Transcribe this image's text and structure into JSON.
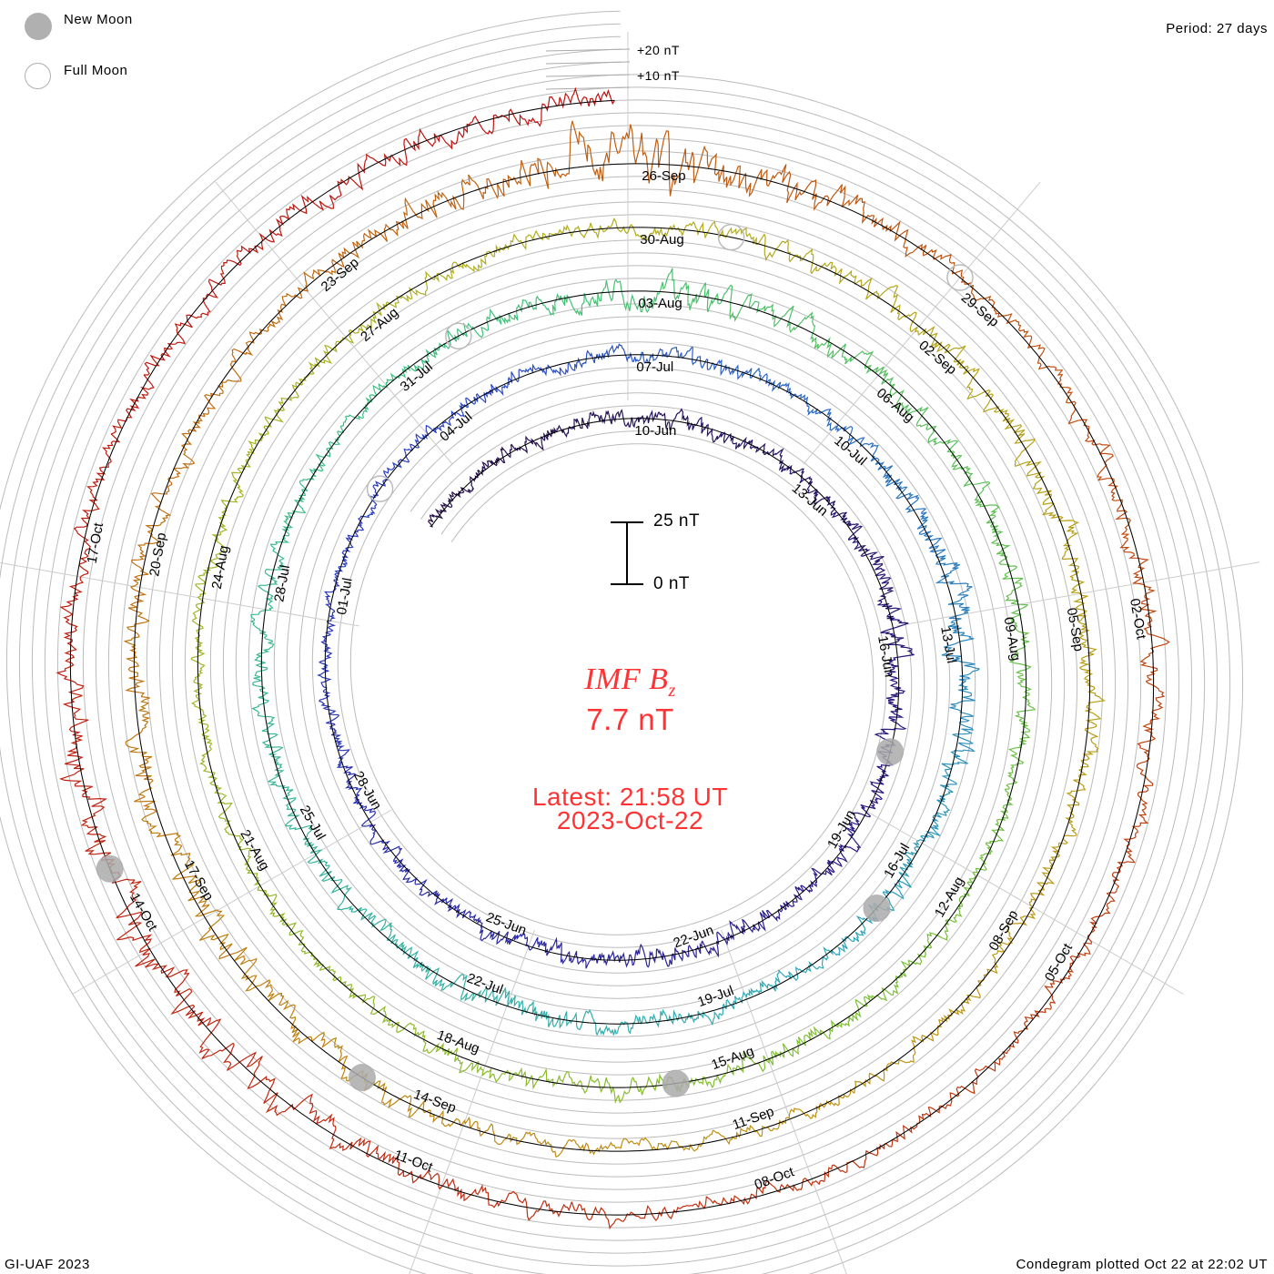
{
  "legend": {
    "new_moon": "New Moon",
    "full_moon": "Full Moon"
  },
  "period": "Period: 27 days",
  "scale_labels": {
    "plus20": "+20 nT",
    "plus10": "+10 nT"
  },
  "scale_bar": {
    "top": "25 nT",
    "bottom": "0 nT"
  },
  "title": {
    "main": "IMF B",
    "sub": "z",
    "value": "7.7 nT"
  },
  "latest": {
    "time": "Latest: 21:58 UT",
    "date": "2023-Oct-22"
  },
  "footer": {
    "left": "GI-UAF 2023",
    "right": "Condegram plotted Oct 22 at 22:02 UT"
  },
  "chart_data": {
    "type": "line",
    "subtype": "condegram-spiral",
    "title": "IMF Bz",
    "period_days": 27,
    "unit": "nT",
    "start_label_date": "10-Jun",
    "data_start_day": -4,
    "data_end_day": 134.9,
    "date_labels": [
      "10-Jun",
      "13-Jun",
      "16-Jun",
      "19-Jun",
      "22-Jun",
      "25-Jun",
      "28-Jun",
      "01-Jul",
      "04-Jul",
      "07-Jul",
      "10-Jul",
      "13-Jul",
      "16-Jul",
      "19-Jul",
      "22-Jul",
      "25-Jul",
      "28-Jul",
      "31-Jul",
      "03-Aug",
      "06-Aug",
      "09-Aug",
      "12-Aug",
      "15-Aug",
      "18-Aug",
      "21-Aug",
      "24-Aug",
      "27-Aug",
      "30-Aug",
      "02-Sep",
      "05-Sep",
      "08-Sep",
      "11-Sep",
      "14-Sep",
      "17-Sep",
      "20-Sep",
      "23-Sep",
      "26-Sep",
      "29-Sep",
      "02-Oct",
      "05-Oct",
      "08-Oct",
      "11-Oct",
      "14-Oct",
      "17-Oct"
    ],
    "label_step_days": 3,
    "bz_amplitude_every_3_days_from_day_-3_nT": [
      4,
      5,
      4,
      7,
      5,
      6,
      5,
      5,
      3,
      4,
      5,
      4,
      9,
      6,
      5,
      7,
      6,
      5,
      4,
      9,
      6,
      6,
      4,
      6,
      6,
      4,
      4,
      5,
      5,
      7,
      6,
      5,
      4,
      5,
      10,
      6,
      5,
      18,
      4,
      6,
      5,
      4,
      6,
      12,
      5,
      7,
      7
    ],
    "new_moon_days": [
      8,
      37,
      67,
      97,
      126.7
    ],
    "full_moon_days": [
      23,
      52,
      82,
      111
    ],
    "latest_value_nT": 7.7,
    "scale_nT": 25,
    "grid_step_nT": 5,
    "color_stops": [
      "#25104a",
      "#2a1a8a",
      "#2a40c8",
      "#30a8b8",
      "#40c080",
      "#80c030",
      "#b0b020",
      "#c09010",
      "#c06010",
      "#c03010",
      "#c01010"
    ]
  }
}
